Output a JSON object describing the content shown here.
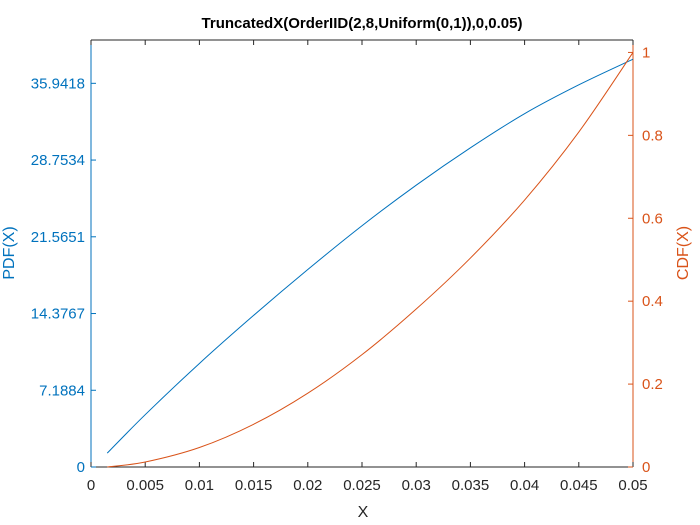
{
  "chart_data": {
    "type": "line",
    "title": "TruncatedX(OrderIID(2,8,Uniform(0,1)),0,0.05)",
    "xlabel": "X",
    "ylabel_left": "PDF(X)",
    "ylabel_right": "CDF(X)",
    "xlim": [
      0,
      0.05
    ],
    "ylim_left": [
      0,
      40
    ],
    "ylim_right": [
      0,
      1.03
    ],
    "x_ticks": [
      "0",
      "0.005",
      "0.01",
      "0.015",
      "0.02",
      "0.025",
      "0.03",
      "0.035",
      "0.04",
      "0.045",
      "0.05"
    ],
    "y_left_ticks": [
      "0",
      "7.1884",
      "14.3767",
      "21.5651",
      "28.7534",
      "35.9418"
    ],
    "y_right_ticks": [
      "0",
      "0.2",
      "0.4",
      "0.6",
      "0.8",
      "1"
    ],
    "grid": false,
    "colors": {
      "left": "#0072BD",
      "right": "#D95319",
      "axis": "#262626"
    },
    "series": [
      {
        "axis": "left",
        "color": "#0072BD",
        "x": [
          0.0015,
          0.005,
          0.01,
          0.015,
          0.02,
          0.025,
          0.03,
          0.035,
          0.04,
          0.045,
          0.05
        ],
        "values": [
          1.3,
          4.9,
          9.7,
          14.2,
          18.5,
          22.6,
          26.4,
          29.9,
          33.1,
          35.8,
          38.2
        ]
      },
      {
        "axis": "right",
        "color": "#D95319",
        "x": [
          0.0015,
          0.005,
          0.01,
          0.015,
          0.02,
          0.025,
          0.03,
          0.035,
          0.04,
          0.045,
          0.05
        ],
        "values": [
          0.0,
          0.012,
          0.047,
          0.103,
          0.178,
          0.271,
          0.381,
          0.504,
          0.644,
          0.808,
          1.0
        ]
      }
    ]
  }
}
